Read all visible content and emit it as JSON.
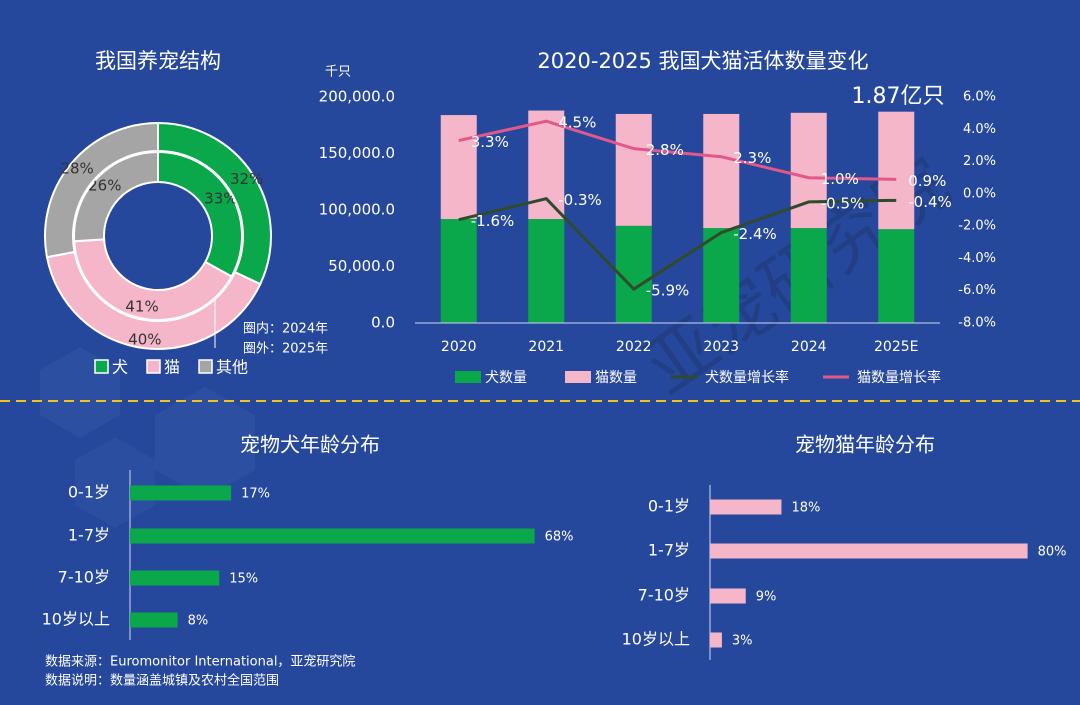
{
  "chart_data": [
    {
      "type": "donut",
      "title": "我国养宠结构",
      "categories": [
        "犬",
        "猫",
        "其他"
      ],
      "colors": [
        "#0aa84a",
        "#f4b6c8",
        "#a5a5a5"
      ],
      "series": [
        {
          "values": [
            33,
            41,
            26
          ],
          "value_labels": [
            "33%",
            "41%",
            "26%"
          ]
        },
        {
          "values": [
            32,
            40,
            28
          ],
          "value_labels": [
            "32%",
            "40%",
            "28%"
          ]
        }
      ],
      "annotations": [
        "圈内：2024年",
        "圈外：2025年"
      ]
    },
    {
      "type": "combo",
      "title": "2020-2025 我国犬猫活体数量变化",
      "ylabel": "千只",
      "annotation": "1.87亿只",
      "categories": [
        "2020",
        "2021",
        "2022",
        "2023",
        "2024",
        "2025E"
      ],
      "stacked": true,
      "series": [
        {
          "name": "犬数量",
          "type": "bar",
          "color": "#0aa84a",
          "values": [
            92000,
            92000,
            86000,
            84000,
            84000,
            83000
          ]
        },
        {
          "name": "猫数量",
          "type": "bar",
          "color": "#f4b6c8",
          "values": [
            92000,
            96000,
            99000,
            101000,
            102000,
            104000
          ]
        },
        {
          "name": "犬数量增长率",
          "type": "line",
          "axis": "y2",
          "color": "#2f4a2c",
          "values": [
            -1.6,
            -0.3,
            -5.9,
            -2.4,
            -0.5,
            -0.4
          ],
          "value_labels": [
            "-1.6%",
            "-0.3%",
            "-5.9%",
            "-2.4%",
            "-0.5%",
            "-0.4%"
          ]
        },
        {
          "name": "猫数量增长率",
          "type": "line",
          "axis": "y2",
          "color": "#e2588a",
          "values": [
            3.3,
            4.5,
            2.8,
            2.3,
            1.0,
            0.9
          ],
          "value_labels": [
            "3.3%",
            "4.5%",
            "2.8%",
            "2.3%",
            "1.0%",
            "0.9%"
          ]
        }
      ],
      "ylim": [
        0,
        200000
      ],
      "yticks": [
        {
          "value": 0,
          "label": "0.0"
        },
        {
          "value": 50000,
          "label": "50,000.0"
        },
        {
          "value": 100000,
          "label": "100,000.0"
        },
        {
          "value": 150000,
          "label": "150,000.0"
        },
        {
          "value": 200000,
          "label": "200,000.0"
        }
      ],
      "y2lim": [
        -8,
        6
      ],
      "y2ticks": [
        {
          "value": -8,
          "label": "-8.0%"
        },
        {
          "value": -6,
          "label": "-6.0%"
        },
        {
          "value": -4,
          "label": "-4.0%"
        },
        {
          "value": -2,
          "label": "-2.0%"
        },
        {
          "value": 0,
          "label": "0.0%"
        },
        {
          "value": 2,
          "label": "2.0%"
        },
        {
          "value": 4,
          "label": "4.0%"
        },
        {
          "value": 6,
          "label": "6.0%"
        }
      ]
    },
    {
      "type": "hbar",
      "title": "宠物犬年龄分布",
      "color": "#0aa84a",
      "categories": [
        "0-1岁",
        "1-7岁",
        "7-10岁",
        "10岁以上"
      ],
      "values": [
        17,
        68,
        15,
        8
      ],
      "value_labels": [
        "17%",
        "68%",
        "15%",
        "8%"
      ]
    },
    {
      "type": "hbar",
      "title": "宠物猫年龄分布",
      "color": "#f4b6c8",
      "categories": [
        "0-1岁",
        "1-7岁",
        "7-10岁",
        "10岁以上"
      ],
      "values": [
        18,
        80,
        9,
        3
      ],
      "value_labels": [
        "18%",
        "80%",
        "9%",
        "3%"
      ]
    }
  ],
  "footer": {
    "source": "数据来源：Euromonitor International，亚宠研究院",
    "note": "数据说明：数量涵盖城镇及农村全国范围"
  },
  "watermark": "亚宠研究院"
}
